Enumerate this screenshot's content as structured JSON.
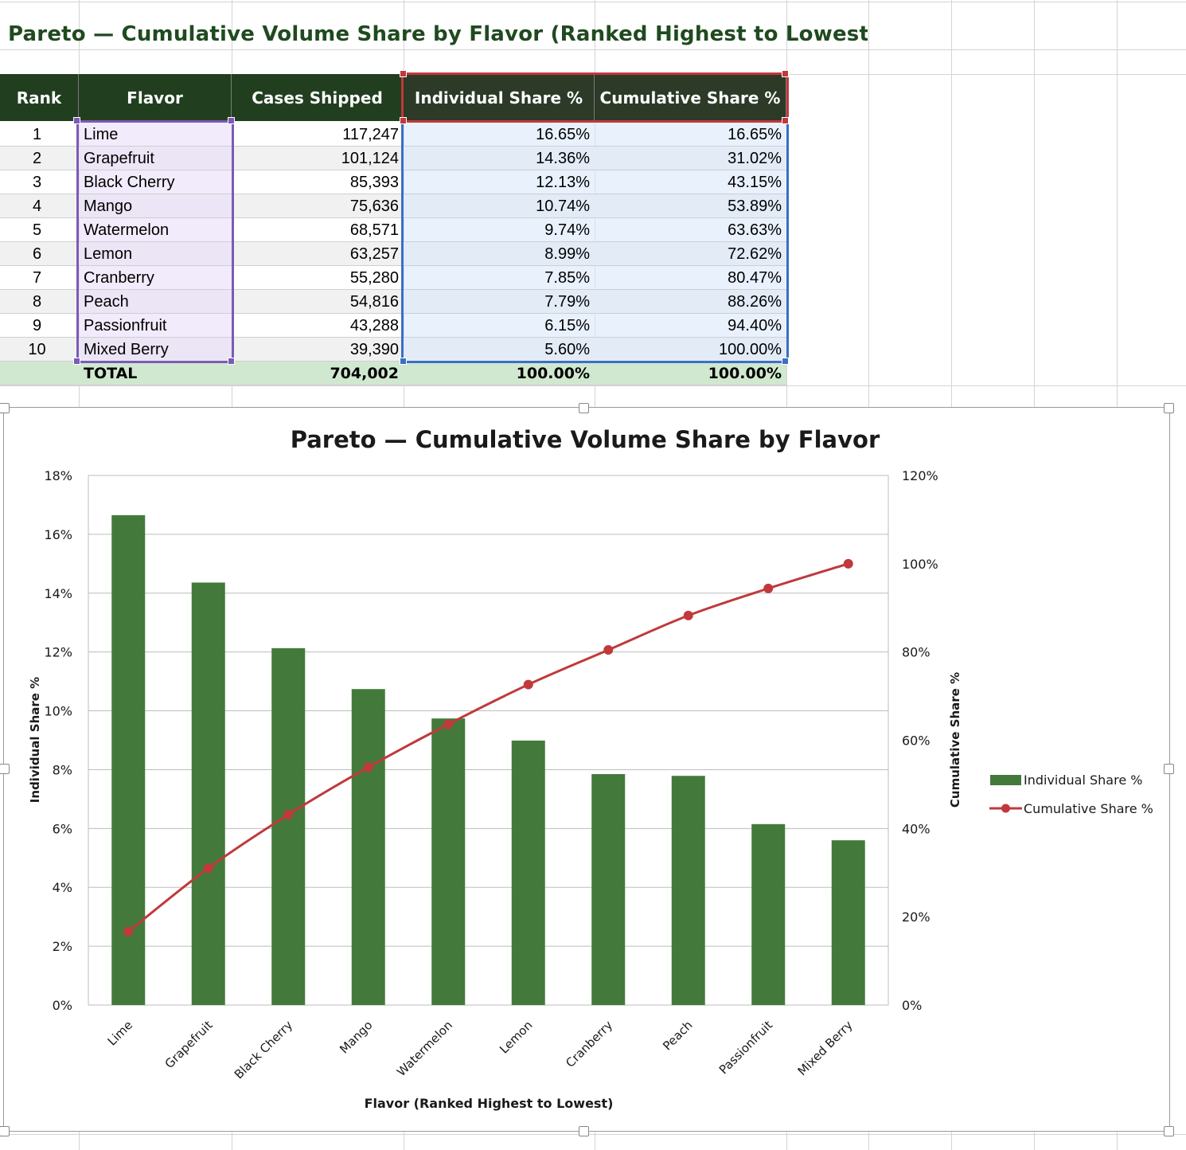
{
  "sheet": {
    "title": "Pareto — Cumulative Volume Share by Flavor (Ranked Highest to Lowest)"
  },
  "table": {
    "headers": [
      "Rank",
      "Flavor",
      "Cases Shipped",
      "Individual Share %",
      "Cumulative Share %"
    ],
    "rows": [
      {
        "rank": "1",
        "flavor": "Lime",
        "cases": "117,247",
        "individual": "16.65%",
        "cumulative": "16.65%"
      },
      {
        "rank": "2",
        "flavor": "Grapefruit",
        "cases": "101,124",
        "individual": "14.36%",
        "cumulative": "31.02%"
      },
      {
        "rank": "3",
        "flavor": "Black Cherry",
        "cases": "85,393",
        "individual": "12.13%",
        "cumulative": "43.15%"
      },
      {
        "rank": "4",
        "flavor": "Mango",
        "cases": "75,636",
        "individual": "10.74%",
        "cumulative": "53.89%"
      },
      {
        "rank": "5",
        "flavor": "Watermelon",
        "cases": "68,571",
        "individual": "9.74%",
        "cumulative": "63.63%"
      },
      {
        "rank": "6",
        "flavor": "Lemon",
        "cases": "63,257",
        "individual": "8.99%",
        "cumulative": "72.62%"
      },
      {
        "rank": "7",
        "flavor": "Cranberry",
        "cases": "55,280",
        "individual": "7.85%",
        "cumulative": "80.47%"
      },
      {
        "rank": "8",
        "flavor": "Peach",
        "cases": "54,816",
        "individual": "7.79%",
        "cumulative": "88.26%"
      },
      {
        "rank": "9",
        "flavor": "Passionfruit",
        "cases": "43,288",
        "individual": "6.15%",
        "cumulative": "94.40%"
      },
      {
        "rank": "10",
        "flavor": "Mixed Berry",
        "cases": "39,390",
        "individual": "5.60%",
        "cumulative": "100.00%"
      }
    ],
    "total": {
      "label": "TOTAL",
      "cases": "704,002",
      "individual": "100.00%",
      "cumulative": "100.00%"
    }
  },
  "colors": {
    "header_dark": "#213f1f",
    "bar": "#437a3b",
    "line": "#c0393b",
    "title_text": "#1f4a1f",
    "total_fill": "#d0e8cf",
    "selection_purple": "#7b5bb6",
    "selection_blue": "#3a6fc4",
    "selection_red": "#c0393b"
  },
  "chart_data": {
    "type": "bar",
    "title": "Pareto — Cumulative Volume Share by Flavor",
    "xlabel": "Flavor (Ranked Highest to Lowest)",
    "ylabel": "Individual Share %",
    "y2label": "Cumulative Share %",
    "categories": [
      "Lime",
      "Grapefruit",
      "Black Cherry",
      "Mango",
      "Watermelon",
      "Lemon",
      "Cranberry",
      "Peach",
      "Passionfruit",
      "Mixed Berry"
    ],
    "series": [
      {
        "name": "Individual Share %",
        "type": "bar",
        "axis": "left",
        "values": [
          16.65,
          14.36,
          12.13,
          10.74,
          9.74,
          8.99,
          7.85,
          7.79,
          6.15,
          5.6
        ]
      },
      {
        "name": "Cumulative Share %",
        "type": "line",
        "axis": "right",
        "values": [
          16.65,
          31.02,
          43.15,
          53.89,
          63.63,
          72.62,
          80.47,
          88.26,
          94.4,
          100.0
        ]
      }
    ],
    "ylim": [
      0,
      18
    ],
    "y2lim": [
      0,
      120
    ],
    "yticks": [
      "0%",
      "2%",
      "4%",
      "6%",
      "8%",
      "10%",
      "12%",
      "14%",
      "16%",
      "18%"
    ],
    "y2ticks": [
      "0%",
      "20%",
      "40%",
      "60%",
      "80%",
      "100%",
      "120%"
    ],
    "grid": true,
    "legend": "right"
  }
}
